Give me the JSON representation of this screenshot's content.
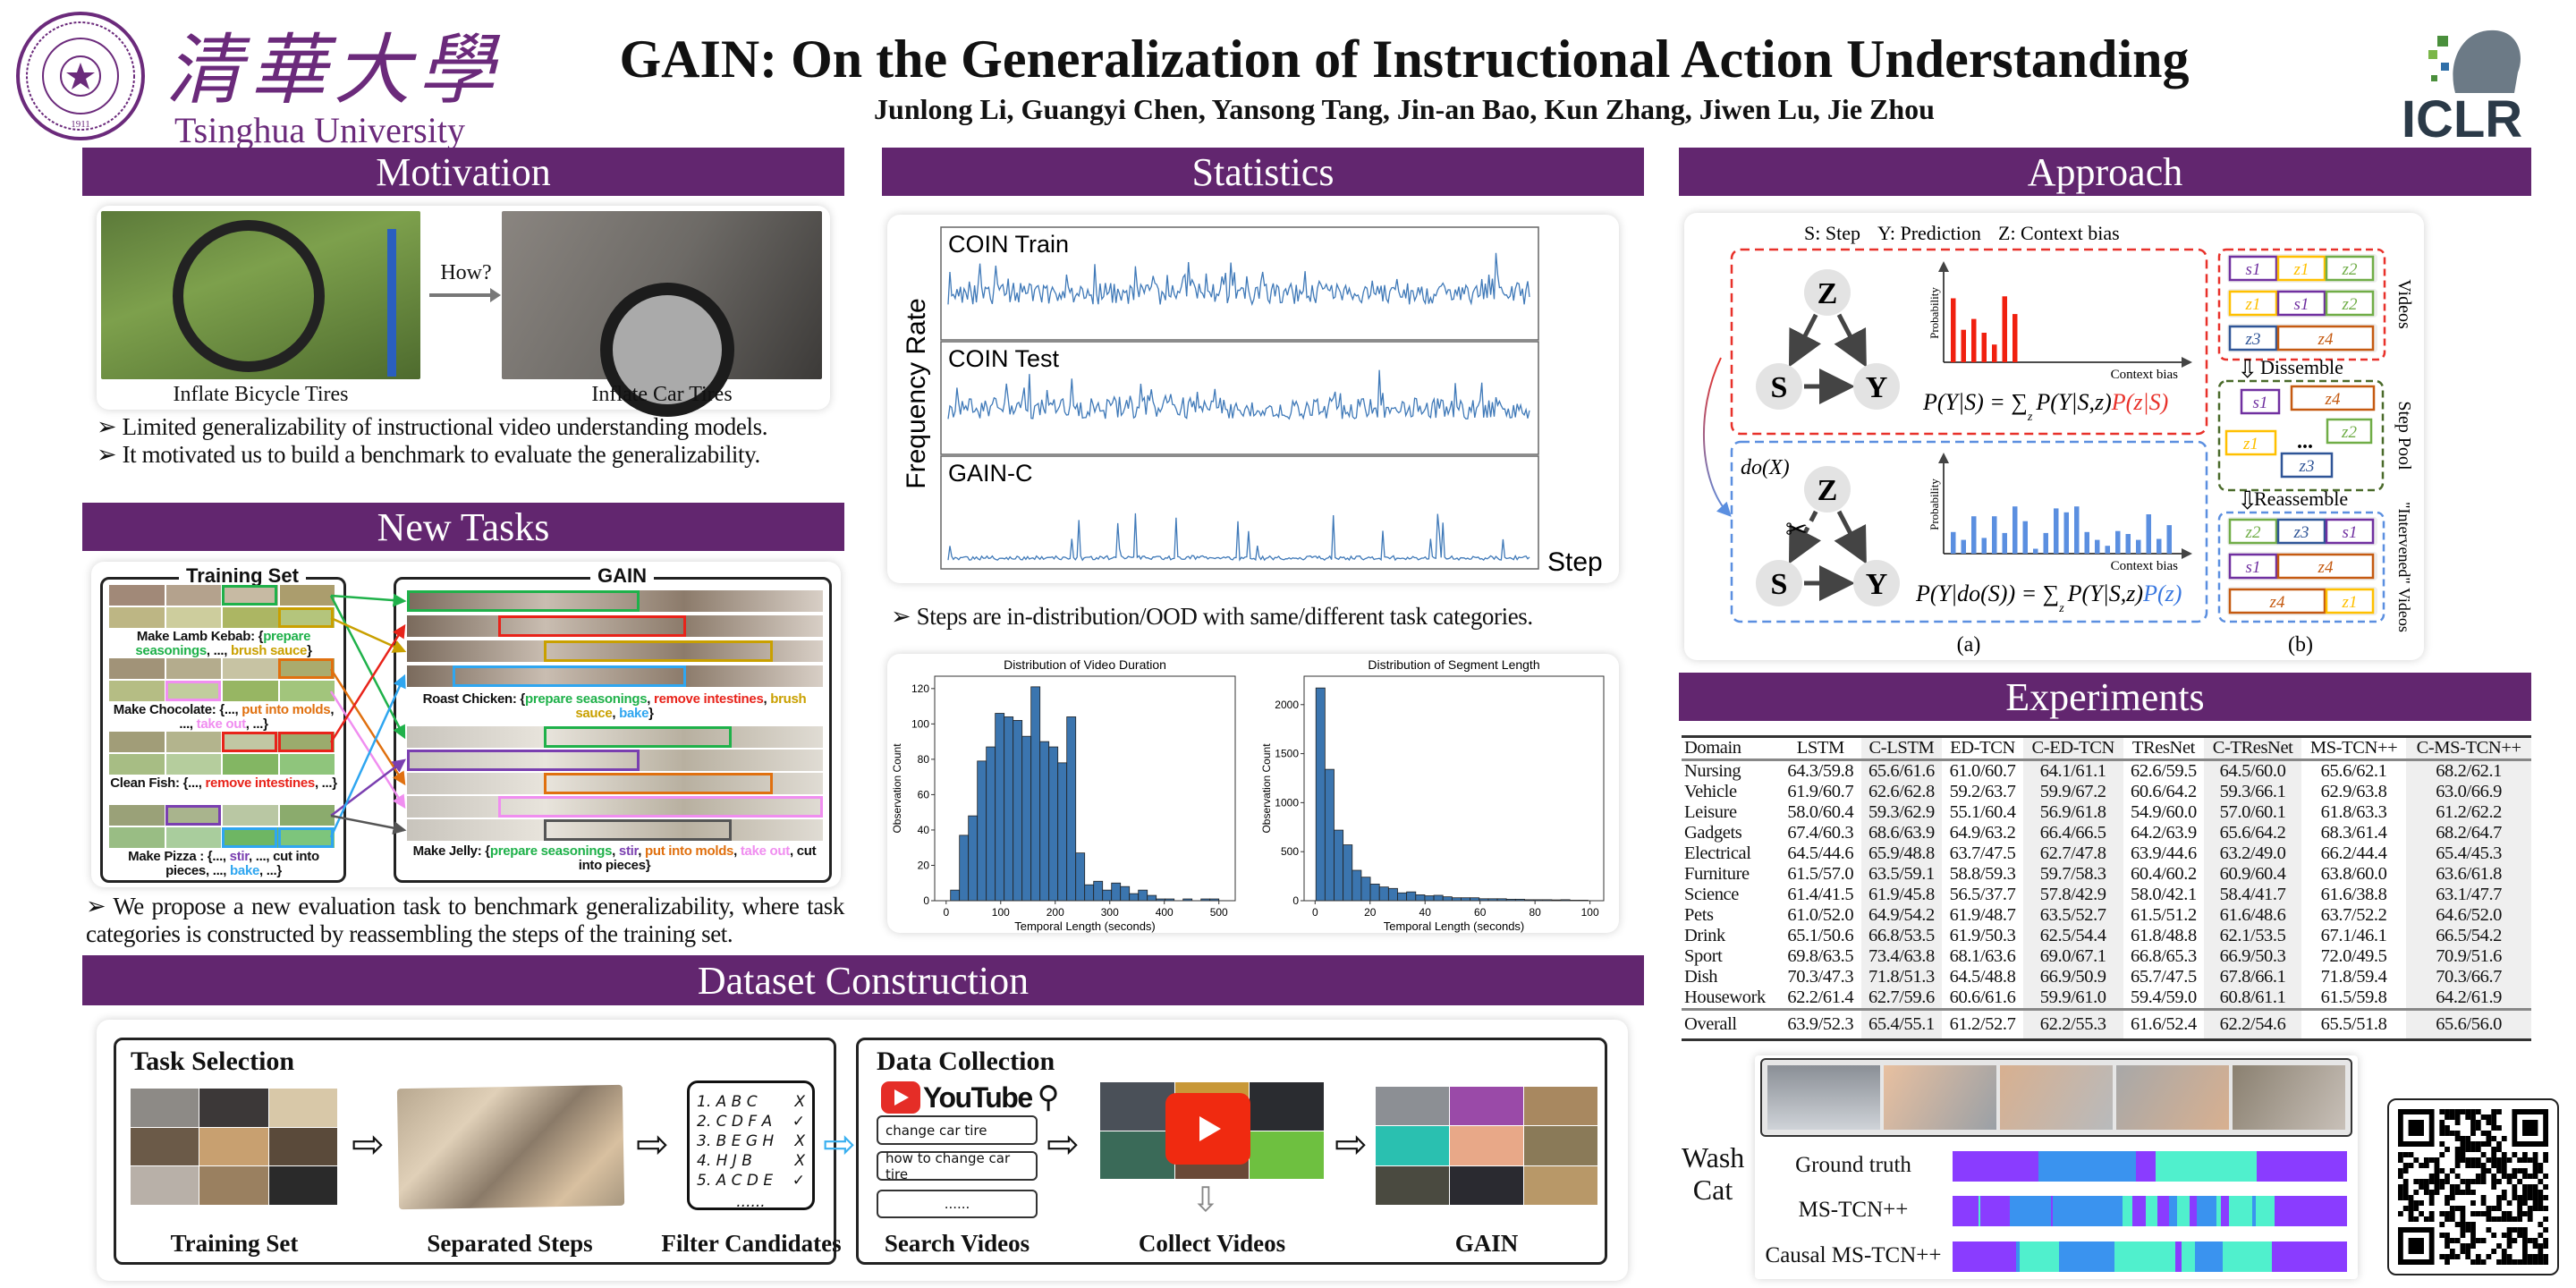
{
  "header": {
    "title": "GAIN: On the Generalization of Instructional Action Understanding",
    "authors": "Junlong Li, Guangyi Chen, Yansong Tang, Jin-an Bao, Kun Zhang, Jiwen Lu, Jie Zhou",
    "university_cn": "清華大學",
    "university_en": "Tsinghua University",
    "seal_year": "1911",
    "conference": "ICLR"
  },
  "sections": {
    "motivation": "Motivation",
    "new_tasks": "New Tasks",
    "dataset": "Dataset Construction",
    "statistics": "Statistics",
    "approach": "Approach",
    "experiments": "Experiments"
  },
  "motivation": {
    "left_caption": "Inflate Bicycle Tires",
    "right_caption": "Inflate Car Tires",
    "arrow_label": "How?",
    "bullets": [
      "Limited generalizability of  instructional video understanding models.",
      "It motivated us to build a benchmark to evaluate the generalizability."
    ]
  },
  "new_tasks": {
    "training_title": "Training Set",
    "gain_title": "GAIN",
    "training_captions": [
      [
        [
          "Make Lamb Kebab: {",
          ""
        ],
        [
          "prepare seasonings",
          "#1fb14a"
        ],
        [
          ", ..., ",
          ""
        ],
        [
          "brush sauce",
          "#c9a000"
        ],
        [
          "}",
          ""
        ]
      ],
      [
        [
          "Make Chocolate: {..., ",
          ""
        ],
        [
          "put into molds",
          "#e0700f"
        ],
        [
          ", ..., ",
          ""
        ],
        [
          "take out",
          "#f08ef0"
        ],
        [
          ", ...}",
          ""
        ]
      ],
      [
        [
          "Clean Fish: {..., ",
          ""
        ],
        [
          "remove intestines",
          "#e8231a"
        ],
        [
          ", ...}",
          ""
        ]
      ],
      [
        [
          "Make Pizza : {..., ",
          ""
        ],
        [
          "stir",
          "#7a3fb0"
        ],
        [
          ", ..., cut into pieces, ..., ",
          ""
        ],
        [
          "bake",
          "#2fa6f0"
        ],
        [
          ", ...}",
          ""
        ]
      ]
    ],
    "gain_captions": [
      [
        [
          "Roast Chicken: {",
          ""
        ],
        [
          "prepare seasonings",
          "#1fb14a"
        ],
        [
          ", ",
          ""
        ],
        [
          "remove intestines",
          "#e8231a"
        ],
        [
          ", ",
          ""
        ],
        [
          "brush sauce",
          "#c9a000"
        ],
        [
          ", ",
          ""
        ],
        [
          "bake",
          "#2fa6f0"
        ],
        [
          "}",
          ""
        ]
      ],
      [
        [
          "Make Jelly:  {",
          ""
        ],
        [
          "prepare seasonings",
          "#1fb14a"
        ],
        [
          ", ",
          ""
        ],
        [
          "stir",
          "#7a3fb0"
        ],
        [
          ", ",
          ""
        ],
        [
          "put into molds",
          "#e0700f"
        ],
        [
          ", ",
          ""
        ],
        [
          "take out",
          "#f08ef0"
        ],
        [
          ", cut into pieces}",
          ""
        ]
      ]
    ],
    "bullet": "We propose a new evaluation task to benchmark generalizability, where task categories is constructed by reassembling the steps of the training set."
  },
  "dataset": {
    "task_selection": "Task Selection",
    "data_collection": "Data Collection",
    "youtube": "YouTube",
    "search_queries": [
      "change car tire",
      "how to change car tire",
      "......"
    ],
    "candidates": [
      {
        "text": "1. A B C",
        "mark": "X"
      },
      {
        "text": "2. C D F A",
        "mark": "✓"
      },
      {
        "text": "3. B E G H",
        "mark": "X"
      },
      {
        "text": "4. H J B",
        "mark": "X"
      },
      {
        "text": "5. A C D E",
        "mark": "✓"
      }
    ],
    "candidates_more": "......",
    "steps": [
      "Training Set",
      "Separated Steps",
      "Filter Candidates",
      "Search Videos",
      "Collect Videos",
      "GAIN"
    ]
  },
  "statistics": {
    "ylabel": "Frequency Rate",
    "xlabel": "Step",
    "series": [
      "COIN Train",
      "COIN Test",
      "GAIN-C"
    ],
    "bullet": "Steps are in-distribution/OOD with same/different task categories."
  },
  "chart_data": [
    {
      "type": "bar",
      "title": "Distribution of Video Duration",
      "xlabel": "Temporal Length (seconds)",
      "ylabel": "Observation Count",
      "bin_start": 8,
      "bin_width": 16.4,
      "values": [
        6,
        37,
        48,
        79,
        87,
        106,
        104,
        102,
        93,
        121,
        90,
        87,
        78,
        104,
        27,
        9,
        11,
        6,
        10,
        8,
        4,
        6,
        3,
        1,
        1,
        0,
        1,
        0,
        1,
        1
      ],
      "xlim": [
        -21,
        530
      ],
      "ylim": [
        0,
        127
      ],
      "xticks": [
        0,
        100,
        200,
        300,
        400,
        500
      ],
      "yticks": [
        0,
        20,
        40,
        60,
        80,
        100,
        120
      ]
    },
    {
      "type": "bar",
      "title": "Distribution of Segment Length",
      "xlabel": "Temporal Length (seconds)",
      "ylabel": "Observation Count",
      "bin_start": 0.3,
      "bin_width": 3.3,
      "values": [
        2170,
        1340,
        720,
        570,
        310,
        240,
        170,
        140,
        125,
        80,
        90,
        60,
        50,
        55,
        40,
        30,
        30,
        30,
        20,
        20,
        20,
        15,
        15,
        10,
        10,
        10,
        8,
        10,
        5,
        5
      ],
      "xlim": [
        -4,
        105
      ],
      "ylim": [
        0,
        2290
      ],
      "xticks": [
        0,
        20,
        40,
        60,
        80,
        100
      ],
      "yticks": [
        0,
        500,
        1000,
        1500,
        2000
      ]
    }
  ],
  "approach": {
    "legend": [
      "S: Step",
      "Y: Prediction",
      "Z: Context bias"
    ],
    "nodes": [
      "Z",
      "S",
      "Y"
    ],
    "axis_y": "Probability",
    "axis_x": "Context bias",
    "do_label": "do(X)",
    "formula_top": "P(Y|S) = ∑",
    "formula_top_sub": "z",
    "formula_top_mid": "P(Y|S,z)",
    "formula_top_hl": "P(z|S)",
    "formula_bottom": "P(Y|do(S)) = ∑",
    "formula_bottom_sub": "z",
    "formula_bottom_mid": "P(Y|S,z)",
    "formula_bottom_hl": "P(z)",
    "biased_probs": [
      0.65,
      0.33,
      0.44,
      0.3,
      0.18,
      0.67,
      0.49
    ],
    "intervened_probs": [
      0.22,
      0.14,
      0.38,
      0.16,
      0.38,
      0.21,
      0.48,
      0.33,
      0.05,
      0.21,
      0.46,
      0.42,
      0.48,
      0.22,
      0.14,
      0.08,
      0.23,
      0.2,
      0.14,
      0.4,
      0.15,
      0.29
    ],
    "dissemble": "Dissemble",
    "reassemble": "Reassemble",
    "videos_label": "Videos",
    "pool_label": "Step Pool",
    "intervened_label": "\"Intervened\" Videos",
    "pool_dots": "...",
    "caption_a": "(a)",
    "caption_b": "(b)",
    "videos": [
      [
        "s1",
        "z1",
        "z2"
      ],
      [
        "z1",
        "s1",
        "z2"
      ],
      [
        "z3",
        "z4"
      ]
    ],
    "pool": [
      "s1",
      "z4",
      "z1",
      "z2",
      "z3"
    ],
    "intervened": [
      [
        "z2",
        "z3",
        "s1"
      ],
      [
        "s1",
        "z4"
      ],
      [
        "z4",
        "z1"
      ]
    ]
  },
  "experiments": {
    "columns": [
      "Domain",
      "LSTM",
      "C-LSTM",
      "ED-TCN",
      "C-ED-TCN",
      "TResNet",
      "C-TResNet",
      "MS-TCN++",
      "C-MS-TCN++"
    ],
    "rows": [
      [
        "Nursing",
        "64.3/59.8",
        "65.6/61.6",
        "61.0/60.7",
        "64.1/61.1",
        "62.6/59.5",
        "64.5/60.0",
        "65.6/62.1",
        "68.2/62.1"
      ],
      [
        "Vehicle",
        "61.9/60.7",
        "62.6/62.8",
        "59.2/63.7",
        "59.9/67.2",
        "60.6/64.2",
        "59.3/66.1",
        "62.9/63.8",
        "63.0/66.9"
      ],
      [
        "Leisure",
        "58.0/60.4",
        "59.3/62.9",
        "55.1/60.4",
        "56.9/61.8",
        "54.9/60.0",
        "57.0/60.1",
        "61.8/63.3",
        "61.2/62.2"
      ],
      [
        "Gadgets",
        "67.4/60.3",
        "68.6/63.9",
        "64.9/63.2",
        "66.4/66.5",
        "64.2/63.9",
        "65.6/64.2",
        "68.3/61.4",
        "68.2/64.7"
      ],
      [
        "Electrical",
        "64.5/44.6",
        "65.9/48.8",
        "63.7/47.5",
        "62.7/47.8",
        "63.9/44.6",
        "63.2/49.0",
        "66.2/44.4",
        "65.4/45.3"
      ],
      [
        "Furniture",
        "61.5/57.0",
        "63.5/59.1",
        "58.8/59.3",
        "59.7/58.3",
        "60.4/60.2",
        "60.9/60.4",
        "63.8/60.0",
        "63.6/61.8"
      ],
      [
        "Science",
        "61.4/41.5",
        "61.9/45.8",
        "56.5/37.7",
        "57.8/42.9",
        "58.0/42.1",
        "58.4/41.7",
        "61.6/38.8",
        "63.1/47.7"
      ],
      [
        "Pets",
        "61.0/52.0",
        "64.9/54.2",
        "61.9/48.7",
        "63.5/52.7",
        "61.5/51.2",
        "61.6/48.6",
        "63.7/52.2",
        "64.6/52.0"
      ],
      [
        "Drink",
        "65.1/50.6",
        "66.8/53.5",
        "61.9/50.3",
        "62.5/54.4",
        "61.8/48.8",
        "62.1/53.5",
        "67.1/46.1",
        "66.5/54.2"
      ],
      [
        "Sport",
        "69.8/63.5",
        "73.4/63.8",
        "68.1/63.6",
        "69.0/67.1",
        "66.8/65.3",
        "66.9/50.3",
        "72.0/49.5",
        "70.9/51.6"
      ],
      [
        "Dish",
        "70.3/47.3",
        "71.8/51.3",
        "64.5/48.8",
        "66.9/50.9",
        "65.7/47.5",
        "67.8/66.1",
        "71.8/59.4",
        "70.3/66.7"
      ],
      [
        "Housework",
        "62.2/61.4",
        "62.7/59.6",
        "60.6/61.6",
        "59.9/61.0",
        "59.4/59.0",
        "60.8/61.1",
        "61.5/59.8",
        "64.2/61.9"
      ]
    ],
    "overall": [
      "Overall",
      "63.9/52.3",
      "65.4/55.1",
      "61.2/52.7",
      "62.2/55.3",
      "61.6/52.4",
      "62.2/54.6",
      "65.5/51.8",
      "65.6/56.0"
    ]
  },
  "results": {
    "task": "Wash Cat",
    "class_colors": [
      "#8a3cff",
      "#3a93ef",
      "#50f0cd"
    ],
    "rows": [
      {
        "label": "Ground truth",
        "segments": [
          [
            0,
            0.217,
            0
          ],
          [
            0.217,
            0.466,
            1
          ],
          [
            0.466,
            0.514,
            0
          ],
          [
            0.514,
            0.772,
            2
          ],
          [
            0.772,
            1,
            0
          ]
        ]
      },
      {
        "label": "MS-TCN++",
        "segments": [
          [
            0,
            0.065,
            0
          ],
          [
            0.065,
            0.07,
            2
          ],
          [
            0.07,
            0.145,
            0
          ],
          [
            0.145,
            0.25,
            1
          ],
          [
            0.25,
            0.255,
            0
          ],
          [
            0.255,
            0.43,
            1
          ],
          [
            0.43,
            0.455,
            2
          ],
          [
            0.455,
            0.49,
            0
          ],
          [
            0.49,
            0.52,
            2
          ],
          [
            0.52,
            0.55,
            0
          ],
          [
            0.55,
            0.57,
            1
          ],
          [
            0.57,
            0.6,
            2
          ],
          [
            0.6,
            0.62,
            0
          ],
          [
            0.62,
            0.67,
            1
          ],
          [
            0.67,
            0.68,
            2
          ],
          [
            0.68,
            0.7,
            0
          ],
          [
            0.7,
            0.76,
            2
          ],
          [
            0.76,
            0.77,
            1
          ],
          [
            0.77,
            0.817,
            2
          ],
          [
            0.817,
            1,
            0
          ]
        ]
      },
      {
        "label": "Causal MS-TCN++",
        "segments": [
          [
            0,
            0.16,
            0
          ],
          [
            0.16,
            0.17,
            1
          ],
          [
            0.17,
            0.18,
            2
          ],
          [
            0.18,
            0.27,
            2
          ],
          [
            0.27,
            0.41,
            1
          ],
          [
            0.41,
            0.565,
            2
          ],
          [
            0.565,
            0.58,
            0
          ],
          [
            0.58,
            0.615,
            2
          ],
          [
            0.615,
            0.685,
            1
          ],
          [
            0.685,
            0.81,
            2
          ],
          [
            0.81,
            1,
            0
          ]
        ]
      }
    ]
  },
  "colors": {
    "section": "#62266f",
    "university": "#6b2a7b",
    "red": "#e8312a",
    "blue": "#4f86e0",
    "hist": "#3b75af",
    "line": "#3f79b8"
  }
}
